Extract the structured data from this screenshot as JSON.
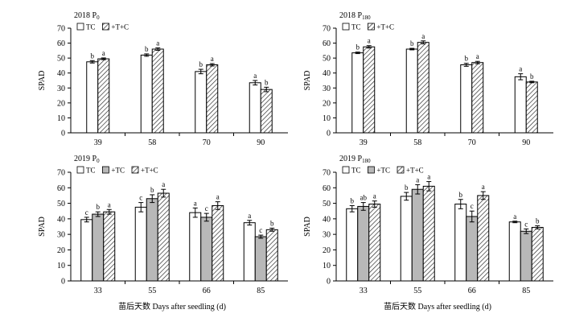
{
  "figure": {
    "ylabel": "SPAD",
    "xlabel": "苗后天数 Days after seedling (d)",
    "colors": {
      "tc": "#ffffff",
      "t": "#b8b8b8",
      "tc_hatch": "#222222",
      "axis": "#000000"
    }
  },
  "chart_data": [
    {
      "type": "bar",
      "title": "2018 P0",
      "title_main": "2018 P",
      "title_sub": "0",
      "categories": [
        "39",
        "58",
        "70",
        "90"
      ],
      "ylim": [
        0,
        70
      ],
      "yticks": [
        0,
        10,
        20,
        30,
        40,
        50,
        60,
        70
      ],
      "ylabel": "SPAD",
      "xlabel": "",
      "legend_position": "top-left",
      "series": [
        {
          "name": "TC",
          "style": "white",
          "values": [
            47.5,
            52,
            41,
            33.5
          ],
          "errors": [
            0.8,
            0.8,
            1.5,
            1.5
          ],
          "letters": [
            "b",
            "b",
            "b",
            "a"
          ]
        },
        {
          "name": "+T+C",
          "style": "hatch",
          "values": [
            49.5,
            56,
            45.5,
            29
          ],
          "errors": [
            0.6,
            0.8,
            0.8,
            1.5
          ],
          "letters": [
            "a",
            "a",
            "a",
            "b"
          ]
        }
      ]
    },
    {
      "type": "bar",
      "title": "2018 P180",
      "title_main": "2018 P",
      "title_sub": "180",
      "categories": [
        "39",
        "58",
        "70",
        "90"
      ],
      "ylim": [
        0,
        70
      ],
      "yticks": [
        0,
        10,
        20,
        30,
        40,
        50,
        60,
        70
      ],
      "ylabel": "SPAD",
      "xlabel": "",
      "legend_position": "top-left",
      "series": [
        {
          "name": "TC",
          "style": "white",
          "values": [
            53.5,
            56,
            45.5,
            37.5
          ],
          "errors": [
            0.5,
            0.5,
            1,
            2
          ],
          "letters": [
            "b",
            "b",
            "b",
            "a"
          ]
        },
        {
          "name": "+T+C",
          "style": "hatch",
          "values": [
            57.5,
            60.5,
            47,
            34
          ],
          "errors": [
            0.8,
            1,
            0.8,
            0.5
          ],
          "letters": [
            "a",
            "a",
            "a",
            "b"
          ]
        }
      ]
    },
    {
      "type": "bar",
      "title": "2019 P0",
      "title_main": "2019 P",
      "title_sub": "0",
      "categories": [
        "33",
        "55",
        "66",
        "85"
      ],
      "ylim": [
        0,
        70
      ],
      "yticks": [
        0,
        10,
        20,
        30,
        40,
        50,
        60,
        70
      ],
      "ylabel": "SPAD",
      "xlabel": "苗后天数 Days after seedling (d)",
      "legend_position": "top-left",
      "series": [
        {
          "name": "TC",
          "style": "white",
          "values": [
            39.5,
            47.5,
            44,
            37.5
          ],
          "errors": [
            1.5,
            3,
            3,
            1.5
          ],
          "letters": [
            "c",
            "c",
            "a",
            "a"
          ]
        },
        {
          "name": "+TC",
          "style": "gray",
          "values": [
            43,
            53,
            41,
            28.5
          ],
          "errors": [
            1.5,
            2.5,
            2.5,
            1
          ],
          "letters": [
            "b",
            "b",
            "c",
            "c"
          ]
        },
        {
          "name": "+T+C",
          "style": "hatch",
          "values": [
            44.5,
            56.5,
            48.5,
            33
          ],
          "errors": [
            1.5,
            2.5,
            2.5,
            1
          ],
          "letters": [
            "a",
            "a",
            "a",
            "b"
          ]
        }
      ]
    },
    {
      "type": "bar",
      "title": "2019 P180",
      "title_main": "2019 P",
      "title_sub": "180",
      "categories": [
        "33",
        "55",
        "66",
        "85"
      ],
      "ylim": [
        0,
        70
      ],
      "yticks": [
        0,
        10,
        20,
        30,
        40,
        50,
        60,
        70
      ],
      "ylabel": "SPAD",
      "xlabel": "苗后天数 Days after seedling (d)",
      "legend_position": "top-left",
      "series": [
        {
          "name": "TC",
          "style": "white",
          "values": [
            46.5,
            54.5,
            49.5,
            38
          ],
          "errors": [
            2,
            2.5,
            3,
            0.5
          ],
          "letters": [
            "b",
            "b",
            "b",
            "a"
          ]
        },
        {
          "name": "+TC",
          "style": "gray",
          "values": [
            48,
            59,
            41.5,
            32
          ],
          "errors": [
            2.5,
            3,
            3.5,
            1.5
          ],
          "letters": [
            "ab",
            "a",
            "c",
            "c"
          ]
        },
        {
          "name": "+T+C",
          "style": "hatch",
          "values": [
            49.5,
            61,
            55,
            34.5
          ],
          "errors": [
            2,
            3,
            2.5,
            1
          ],
          "letters": [
            "a",
            "a",
            "a",
            "b"
          ]
        }
      ]
    }
  ]
}
